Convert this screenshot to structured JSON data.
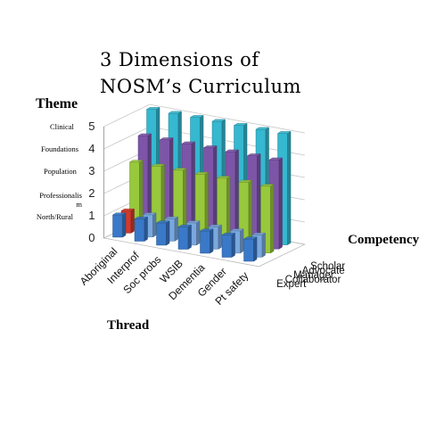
{
  "chart_data": {
    "type": "bar",
    "title": "3 Dimensions of NOSM’s Curriculum",
    "xlabel": "Thread",
    "zlabel": "Competency",
    "theme_label": "Theme",
    "categories": [
      "Aboriginal",
      "Interprof",
      "Soc probs",
      "WSIB",
      "Dementia",
      "Gender",
      "Pt safety"
    ],
    "theme_levels": [
      "Clinical",
      "Foundations",
      "Population",
      "Professionalism",
      "North/Rural"
    ],
    "series": [
      {
        "name": "Expert",
        "color": "#3a78c8",
        "values": [
          1,
          1,
          1,
          1,
          1,
          1,
          1
        ]
      },
      {
        "name": "Collaborator",
        "color": "#7aa8de",
        "values": [
          1,
          1,
          1,
          1,
          1,
          1,
          1
        ]
      },
      {
        "name": "Manager",
        "color": "#98c83c",
        "values": [
          3,
          3,
          3,
          3,
          3,
          3,
          3
        ]
      },
      {
        "name": "Advocate",
        "color": "#7d55a8",
        "values": [
          4,
          4,
          4,
          4,
          4,
          4,
          4
        ]
      },
      {
        "name": "Scholar",
        "color": "#35b8d0",
        "values": [
          5,
          5,
          5,
          5,
          5,
          5,
          5
        ]
      }
    ],
    "highlight": {
      "category": "Aboriginal",
      "series": "Collaborator",
      "value": 1,
      "color": "#d03a2c"
    },
    "yticks": [
      0,
      1,
      2,
      3,
      4,
      5
    ],
    "ylim": [
      0,
      5
    ],
    "legend_position": "right",
    "grid": true
  }
}
